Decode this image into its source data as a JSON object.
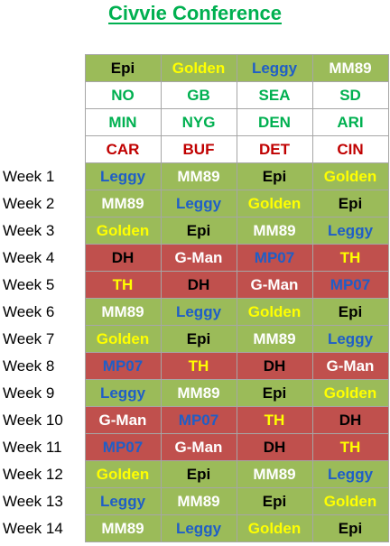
{
  "title": "Civvie Conference",
  "header_rows": [
    [
      "Epi",
      "Golden",
      "Leggy",
      "MM89"
    ],
    [
      "NO",
      "GB",
      "SEA",
      "SD"
    ],
    [
      "MIN",
      "NYG",
      "DEN",
      "ARI"
    ],
    [
      "CAR",
      "BUF",
      "DET",
      "CIN"
    ]
  ],
  "weeks": [
    {
      "label": "Week 1",
      "cells": [
        "Leggy",
        "MM89",
        "Epi",
        "Golden"
      ]
    },
    {
      "label": "Week 2",
      "cells": [
        "MM89",
        "Leggy",
        "Golden",
        "Epi"
      ]
    },
    {
      "label": "Week 3",
      "cells": [
        "Golden",
        "Epi",
        "MM89",
        "Leggy"
      ]
    },
    {
      "label": "Week 4",
      "cells": [
        "DH",
        "G-Man",
        "MP07",
        "TH"
      ]
    },
    {
      "label": "Week 5",
      "cells": [
        "TH",
        "DH",
        "G-Man",
        "MP07"
      ]
    },
    {
      "label": "Week 6",
      "cells": [
        "MM89",
        "Leggy",
        "Golden",
        "Epi"
      ]
    },
    {
      "label": "Week 7",
      "cells": [
        "Golden",
        "Epi",
        "MM89",
        "Leggy"
      ]
    },
    {
      "label": "Week 8",
      "cells": [
        "MP07",
        "TH",
        "DH",
        "G-Man"
      ]
    },
    {
      "label": "Week 9",
      "cells": [
        "Leggy",
        "MM89",
        "Epi",
        "Golden"
      ]
    },
    {
      "label": "Week 10",
      "cells": [
        "G-Man",
        "MP07",
        "TH",
        "DH"
      ]
    },
    {
      "label": "Week 11",
      "cells": [
        "MP07",
        "G-Man",
        "DH",
        "TH"
      ]
    },
    {
      "label": "Week 12",
      "cells": [
        "Golden",
        "Epi",
        "MM89",
        "Leggy"
      ]
    },
    {
      "label": "Week 13",
      "cells": [
        "Leggy",
        "MM89",
        "Epi",
        "Golden"
      ]
    },
    {
      "label": "Week 14",
      "cells": [
        "MM89",
        "Leggy",
        "Golden",
        "Epi"
      ]
    }
  ],
  "colors": {
    "title": "#00b050",
    "group_green_fill": "#9bbb59",
    "group_red_fill": "#c0504d",
    "team_row_green_text": "#00b050",
    "team_row_red_text": "#c00000"
  }
}
